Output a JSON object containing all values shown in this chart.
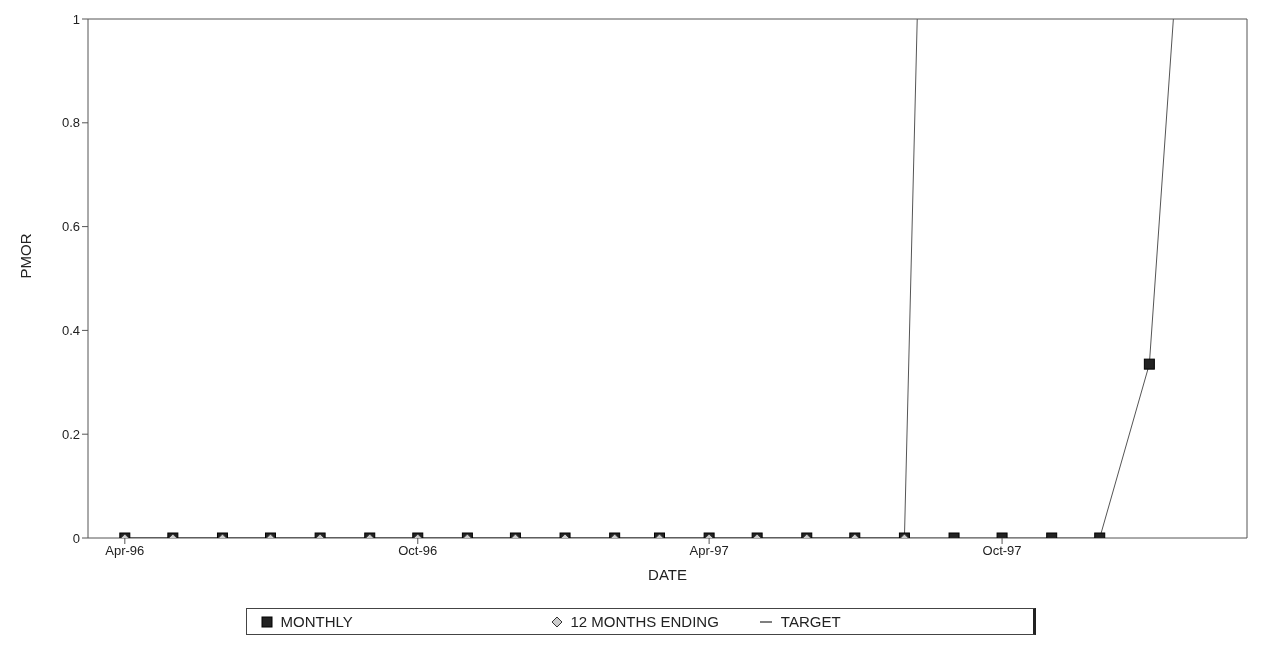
{
  "chart_data": {
    "type": "line",
    "xlabel": "DATE",
    "ylabel": "PMOR",
    "xlim": [
      "1996-03-09",
      "1998-03-03"
    ],
    "xticks": [
      {
        "value": "1996-04",
        "label": "Apr-96"
      },
      {
        "value": "1996-10",
        "label": "Oct-96"
      },
      {
        "value": "1997-04",
        "label": "Apr-97"
      },
      {
        "value": "1997-10",
        "label": "Oct-97"
      }
    ],
    "ylim": [
      0,
      1
    ],
    "yticks": [
      0,
      0.2,
      0.4,
      0.6,
      0.8,
      1
    ],
    "legend": "bottom",
    "line_style": "solid",
    "series": [
      {
        "name": "MONTHLY",
        "color": "#222222",
        "marker": "square",
        "x": [
          "1996-04",
          "1996-05",
          "1996-06",
          "1996-07",
          "1996-08",
          "1996-09",
          "1996-10",
          "1996-11",
          "1996-12",
          "1997-01",
          "1997-02",
          "1997-03",
          "1997-04",
          "1997-05",
          "1997-06",
          "1997-07",
          "1997-08",
          "1997-09",
          "1997-10",
          "1997-11",
          "1997-12",
          "1998-01"
        ],
        "values": [
          0,
          0,
          0,
          0,
          0,
          0,
          0,
          0,
          0,
          0,
          0,
          0,
          0,
          0,
          0,
          0,
          0,
          0,
          0,
          0,
          0,
          0.335
        ]
      },
      {
        "color": "#555555",
        "marker": "none",
        "x": [
          "1998-01",
          "1998-01-16"
        ],
        "values": [
          0.335,
          1
        ]
      },
      {
        "name": "12 MONTHS ENDING",
        "color": "#cccccc",
        "marker": "diamond",
        "x": [
          "1996-04",
          "1996-05",
          "1996-06",
          "1996-07",
          "1996-08",
          "1996-09",
          "1996-10",
          "1996-11",
          "1996-12",
          "1997-01",
          "1997-02",
          "1997-03",
          "1997-04",
          "1997-05",
          "1997-06",
          "1997-07",
          "1997-08"
        ],
        "values": [
          0,
          0,
          0,
          0,
          0,
          0,
          0,
          0,
          0,
          0,
          0,
          0,
          0,
          0,
          0,
          0,
          0
        ]
      },
      {
        "name": "TARGET",
        "color": "#555555",
        "marker": "none",
        "x": [
          "1996-04",
          "1996-05",
          "1996-06",
          "1996-07",
          "1996-08",
          "1996-09",
          "1996-10",
          "1996-11",
          "1996-12",
          "1997-01",
          "1997-02",
          "1997-03",
          "1997-04",
          "1997-05",
          "1997-06",
          "1997-07",
          "1997-08",
          "1997-08-09"
        ],
        "values": [
          0,
          0,
          0,
          0,
          0,
          0,
          0,
          0,
          0,
          0,
          0,
          0,
          0,
          0,
          0,
          0,
          0,
          1
        ]
      }
    ]
  }
}
